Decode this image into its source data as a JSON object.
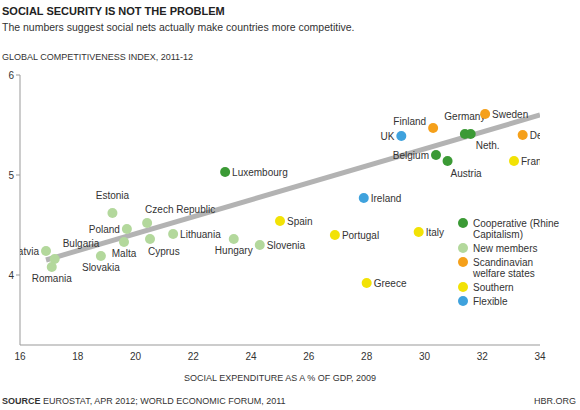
{
  "chart_data": {
    "type": "scatter",
    "title": "SOCIAL SECURITY IS NOT THE PROBLEM",
    "subtitle": "The numbers suggest social nets actually make countries more competitive.",
    "y_label": "GLOBAL COMPETITIVENESS INDEX, 2011-12",
    "x_label": "SOCIAL EXPENDITURE AS A % OF GDP, 2009",
    "source_label": "SOURCE",
    "source": "EUROSTAT, APR 2012; WORLD ECONOMIC FORUM, 2011",
    "credit": "HBR.ORG",
    "xlim": [
      16,
      34
    ],
    "xticks": [
      16,
      18,
      20,
      22,
      24,
      26,
      28,
      30,
      32,
      34
    ],
    "ylim": [
      3.3,
      6
    ],
    "yticks": [
      4,
      5,
      6
    ],
    "grid": false,
    "legend": "lower right",
    "series": [
      {
        "name": "Cooperative (Rhine Capitalism)",
        "color": "#3b9a35",
        "marker": "circle",
        "labels": [
          "Luxembourg",
          "Belgium",
          "Austria",
          "Germany",
          "Neth."
        ],
        "x": [
          23.1,
          30.4,
          30.8,
          31.4,
          31.6
        ],
        "y": [
          5.03,
          5.2,
          5.14,
          5.41,
          5.41
        ]
      },
      {
        "name": "New members",
        "color": "#b3d89c",
        "marker": "circle",
        "labels": [
          "Latvia",
          "Bulgaria",
          "Romania",
          "Slovakia",
          "Estonia",
          "Poland",
          "Malta",
          "Czech Republic",
          "Lithuania",
          "Cyprus",
          "Hungary",
          "Slovenia"
        ],
        "x": [
          16.9,
          17.2,
          17.1,
          18.8,
          19.2,
          19.7,
          19.6,
          20.4,
          21.3,
          20.5,
          23.4,
          24.3
        ],
        "y": [
          4.24,
          4.16,
          4.08,
          4.19,
          4.62,
          4.46,
          4.33,
          4.52,
          4.41,
          4.36,
          4.36,
          4.3
        ]
      },
      {
        "name": "Scandinavian welfare states",
        "color": "#f5a01a",
        "marker": "circle",
        "labels": [
          "Finland",
          "Sweden",
          "Denmark"
        ],
        "x": [
          30.3,
          32.1,
          33.4
        ],
        "y": [
          5.47,
          5.61,
          5.4
        ]
      },
      {
        "name": "Southern",
        "color": "#f2e205",
        "marker": "circle",
        "labels": [
          "Spain",
          "Portugal",
          "Italy",
          "Greece",
          "France"
        ],
        "x": [
          25.0,
          26.9,
          29.8,
          28.0,
          33.1
        ],
        "y": [
          4.54,
          4.4,
          4.43,
          3.92,
          5.14
        ]
      },
      {
        "name": "Flexible",
        "color": "#3fa2dd",
        "marker": "circle",
        "labels": [
          "UK",
          "Ireland"
        ],
        "x": [
          29.2,
          27.9
        ],
        "y": [
          5.39,
          4.77
        ]
      }
    ],
    "trend_line": {
      "x": [
        16.9,
        34
      ],
      "y": [
        4.15,
        5.6
      ],
      "color": "#b3b3b3"
    }
  }
}
